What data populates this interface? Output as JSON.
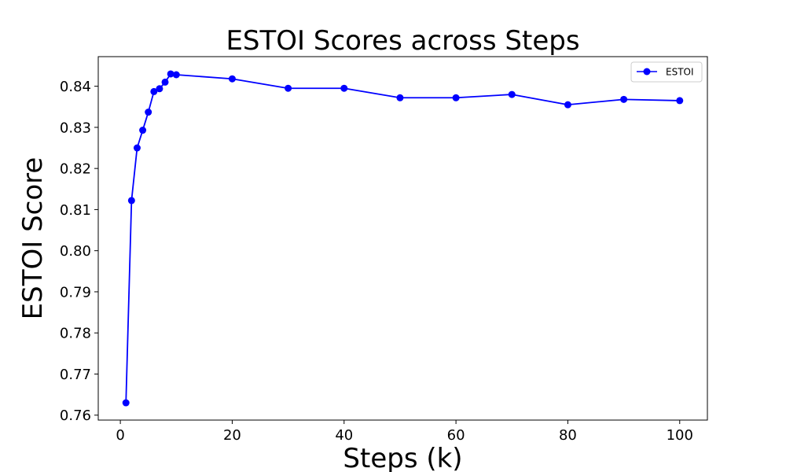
{
  "chart_data": {
    "type": "line",
    "title": "ESTOI Scores across Steps",
    "xlabel": "Steps (k)",
    "ylabel": "ESTOI Score",
    "xlim": [
      -3.95,
      104.95
    ],
    "ylim": [
      0.7588,
      0.8472
    ],
    "xticks": [
      0,
      20,
      40,
      60,
      80,
      100
    ],
    "xtick_labels": [
      "0",
      "20",
      "40",
      "60",
      "80",
      "100"
    ],
    "yticks": [
      0.76,
      0.77,
      0.78,
      0.79,
      0.8,
      0.81,
      0.82,
      0.83,
      0.84
    ],
    "ytick_labels": [
      "0.76",
      "0.77",
      "0.78",
      "0.79",
      "0.80",
      "0.81",
      "0.82",
      "0.83",
      "0.84"
    ],
    "grid": false,
    "legend_position": "top-right",
    "series": [
      {
        "name": "ESTOI",
        "color": "#0000ff",
        "marker": "circle",
        "x": [
          1,
          2,
          3,
          4,
          5,
          6,
          7,
          8,
          9,
          10,
          20,
          30,
          40,
          50,
          60,
          70,
          80,
          90,
          100
        ],
        "y": [
          0.763,
          0.8122,
          0.825,
          0.8293,
          0.8337,
          0.8387,
          0.8394,
          0.841,
          0.843,
          0.8428,
          0.8418,
          0.8395,
          0.8395,
          0.8372,
          0.8372,
          0.838,
          0.8355,
          0.8368,
          0.8365
        ]
      }
    ]
  }
}
